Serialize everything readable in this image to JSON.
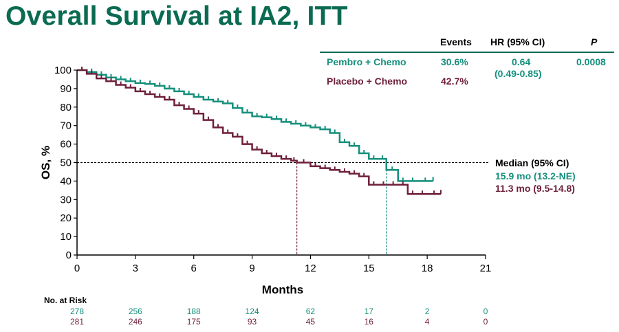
{
  "title": "Overall Survival at IA2, ITT",
  "colors": {
    "pembro": "#148f7c",
    "placebo": "#6e1f3a",
    "title": "#0b6b52"
  },
  "table": {
    "headers": {
      "events": "Events",
      "hr": "HR (95% CI)",
      "p": "P"
    },
    "rows": [
      {
        "arm": "Pembro + Chemo",
        "events": "30.6%",
        "hr": "0.64",
        "hr_ci": "(0.49-0.85)",
        "p": "0.0008"
      },
      {
        "arm": "Placebo + Chemo",
        "events": "42.7%"
      }
    ]
  },
  "median": {
    "title": "Median (95% CI)",
    "pembro": "15.9 mo (13.2-NE)",
    "placebo": "11.3 mo (9.5-14.8)"
  },
  "chart_data": {
    "type": "line",
    "xlabel": "Months",
    "ylabel": "OS, %",
    "xlim": [
      0,
      21
    ],
    "ylim": [
      0,
      100
    ],
    "xticks": [
      0,
      3,
      6,
      9,
      12,
      15,
      18,
      21
    ],
    "yticks": [
      0,
      10,
      20,
      30,
      40,
      50,
      60,
      70,
      80,
      90,
      100
    ],
    "reference_line_y": 50,
    "median_x": {
      "pembro": 15.9,
      "placebo": 11.3
    },
    "series": [
      {
        "name": "Pembro + Chemo",
        "points": [
          [
            0,
            100
          ],
          [
            0.5,
            99
          ],
          [
            1,
            97.5
          ],
          [
            1.5,
            96
          ],
          [
            2,
            95
          ],
          [
            2.5,
            94
          ],
          [
            3,
            93
          ],
          [
            3.5,
            92.5
          ],
          [
            4,
            91.5
          ],
          [
            4.5,
            90
          ],
          [
            5,
            88.5
          ],
          [
            5.5,
            87
          ],
          [
            6,
            85.5
          ],
          [
            6.5,
            84
          ],
          [
            7,
            83
          ],
          [
            7.5,
            82
          ],
          [
            8,
            79.5
          ],
          [
            8.5,
            77
          ],
          [
            9,
            75
          ],
          [
            9.5,
            74.5
          ],
          [
            10,
            73.5
          ],
          [
            10.5,
            72
          ],
          [
            11,
            71
          ],
          [
            11.5,
            70
          ],
          [
            12,
            69
          ],
          [
            12.5,
            68
          ],
          [
            13,
            66
          ],
          [
            13.5,
            61
          ],
          [
            14,
            59
          ],
          [
            14.5,
            55
          ],
          [
            15,
            52
          ],
          [
            15.5,
            52
          ],
          [
            15.9,
            46
          ],
          [
            16.5,
            40
          ],
          [
            17,
            40
          ],
          [
            17.5,
            40
          ],
          [
            18.3,
            40
          ]
        ]
      },
      {
        "name": "Placebo + Chemo",
        "points": [
          [
            0,
            100
          ],
          [
            0.5,
            98
          ],
          [
            1,
            95.5
          ],
          [
            1.5,
            94
          ],
          [
            2,
            92
          ],
          [
            2.5,
            90.5
          ],
          [
            3,
            88.5
          ],
          [
            3.5,
            87
          ],
          [
            4,
            85.5
          ],
          [
            4.5,
            84
          ],
          [
            5,
            81
          ],
          [
            5.5,
            79
          ],
          [
            6,
            76.5
          ],
          [
            6.5,
            73
          ],
          [
            7,
            69
          ],
          [
            7.5,
            66
          ],
          [
            8,
            64
          ],
          [
            8.5,
            60
          ],
          [
            9,
            57
          ],
          [
            9.5,
            55
          ],
          [
            10,
            53.5
          ],
          [
            10.5,
            52
          ],
          [
            11,
            51
          ],
          [
            11.3,
            50
          ],
          [
            12,
            48
          ],
          [
            12.5,
            47
          ],
          [
            13,
            46
          ],
          [
            13.5,
            45
          ],
          [
            14,
            44
          ],
          [
            14.5,
            42.5
          ],
          [
            15,
            38
          ],
          [
            15.5,
            38
          ],
          [
            16,
            38
          ],
          [
            16.5,
            38
          ],
          [
            17,
            33
          ],
          [
            17.5,
            33
          ],
          [
            18,
            33
          ],
          [
            18.7,
            33
          ]
        ]
      }
    ],
    "at_risk": {
      "title": "No. at Risk",
      "x": [
        0,
        3,
        6,
        9,
        12,
        15,
        18,
        21
      ],
      "pembro": [
        "278",
        "256",
        "188",
        "124",
        "62",
        "17",
        "2",
        "0"
      ],
      "placebo": [
        "281",
        "246",
        "175",
        "93",
        "45",
        "16",
        "4",
        "0"
      ]
    }
  }
}
